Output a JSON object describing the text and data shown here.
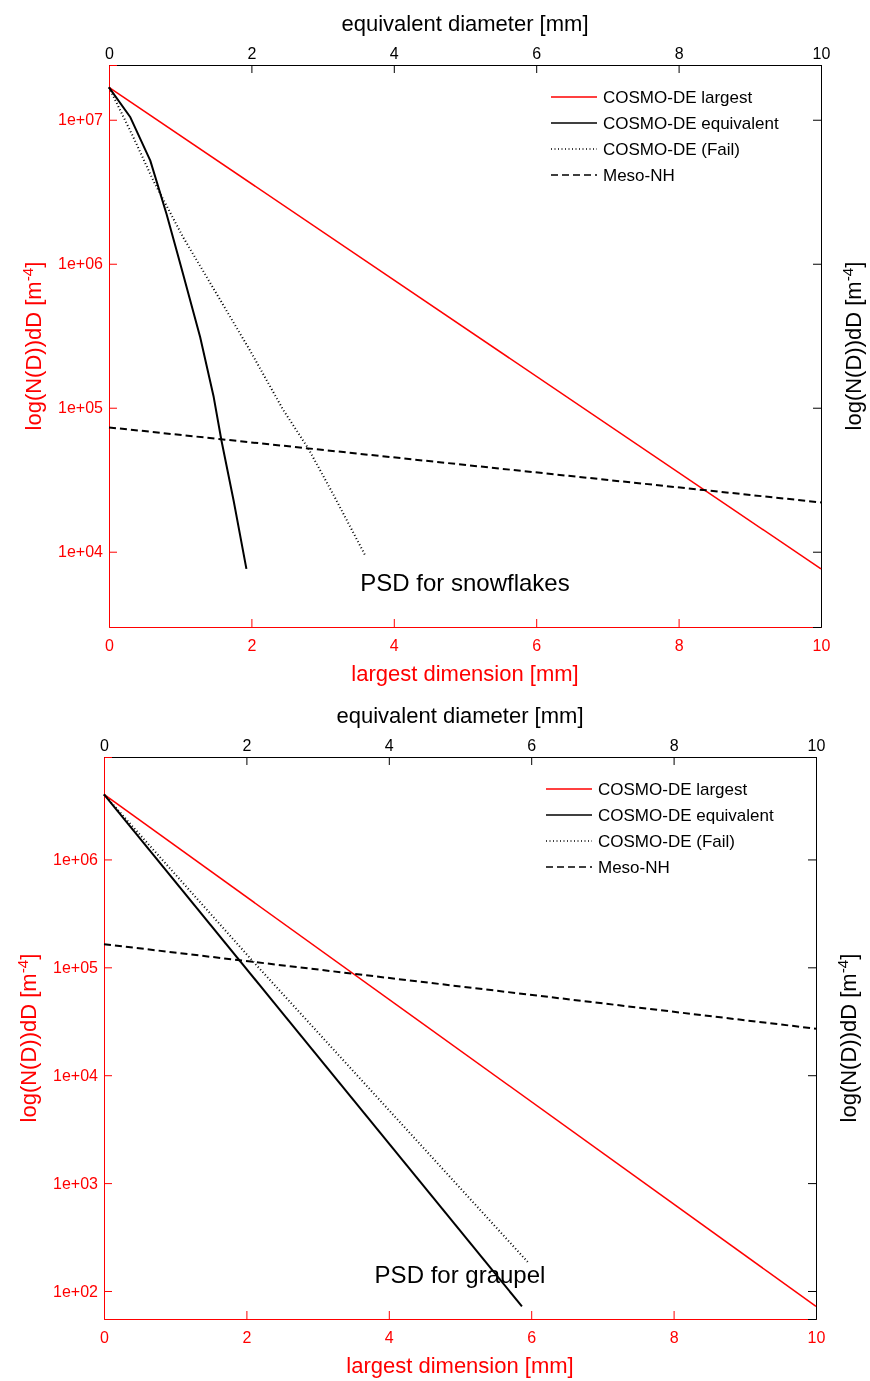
{
  "chart_data": [
    {
      "type": "line",
      "xlabel": "largest dimension [mm]",
      "x2label": "equivalent diameter [mm]",
      "ylabel": "log(N(D))dD [m$^{-4}$]",
      "y2label": "log(N(D))dD [m$^{-4}$]",
      "xlim": [
        0,
        10
      ],
      "xticks": [
        0,
        2,
        4,
        6,
        8,
        10
      ],
      "x2lim": [
        0,
        10
      ],
      "x2ticks": [
        0,
        2,
        4,
        6,
        8,
        10
      ],
      "ylim": [
        3000,
        24000000
      ],
      "yticks": [
        {
          "value": 10000,
          "label": "1e+04"
        },
        {
          "value": 100000,
          "label": "1e+05"
        },
        {
          "value": 1000000,
          "label": "1e+06"
        },
        {
          "value": 10000000,
          "label": "1e+07"
        }
      ],
      "log": "y",
      "legend": "top right",
      "grid": false,
      "marker": "none",
      "annotations": [
        "PSD for snowflakes"
      ],
      "series": [
        {
          "name": "COSMO-DE largest",
          "color": "#ff0000",
          "line_style": "solid",
          "x": [
            0,
            10
          ],
          "values": [
            16800000,
            7600
          ]
        },
        {
          "name": "COSMO-DE equivalent",
          "color": "#000000",
          "line_style": "solid",
          "x": [
            0,
            0.3,
            0.58,
            0.81,
            1.04,
            1.28,
            1.47,
            1.58,
            1.75,
            1.93
          ],
          "values": [
            16800000,
            10400000,
            5200000,
            2200000,
            850000,
            310000,
            119000,
            59000,
            22700,
            7600
          ]
        },
        {
          "name": "COSMO-DE (Fail)",
          "color": "#000000",
          "line_style": "dotted",
          "x": [
            0,
            0.34,
            0.62,
            1.04,
            1.51,
            1.98,
            2.45,
            2.8,
            3.15,
            3.6
          ],
          "values": [
            16800000,
            7600000,
            3800000,
            1530000,
            620000,
            250000,
            96000,
            52000,
            25000,
            9400
          ]
        },
        {
          "name": "Meso-NH",
          "color": "#000000",
          "line_style": "dashed",
          "x": [
            0,
            10
          ],
          "values": [
            73000,
            22000
          ]
        }
      ]
    },
    {
      "type": "line",
      "xlabel": "largest dimension [mm]",
      "x2label": "equivalent diameter [mm]",
      "ylabel": "log(N(D))dD [m$^{-4}$]",
      "y2label": "log(N(D))dD [m$^{-4}$]",
      "xlim": [
        0,
        10
      ],
      "xticks": [
        0,
        2,
        4,
        6,
        8,
        10
      ],
      "x2lim": [
        0,
        10
      ],
      "x2ticks": [
        0,
        2,
        4,
        6,
        8,
        10
      ],
      "ylim": [
        55,
        8900000
      ],
      "yticks": [
        {
          "value": 100,
          "label": "1e+02"
        },
        {
          "value": 1000,
          "label": "1e+03"
        },
        {
          "value": 10000,
          "label": "1e+04"
        },
        {
          "value": 100000,
          "label": "1e+05"
        },
        {
          "value": 1000000,
          "label": "1e+06"
        }
      ],
      "log": "y",
      "legend": "top right",
      "grid": false,
      "marker": "none",
      "annotations": [
        "PSD for graupel"
      ],
      "series": [
        {
          "name": "COSMO-DE largest",
          "color": "#ff0000",
          "line_style": "solid",
          "x": [
            0,
            10
          ],
          "values": [
            4000000,
            72
          ]
        },
        {
          "name": "COSMO-DE equivalent",
          "color": "#000000",
          "line_style": "solid",
          "x": [
            0,
            5.87
          ],
          "values": [
            4000000,
            72
          ]
        },
        {
          "name": "COSMO-DE (Fail)",
          "color": "#000000",
          "line_style": "dotted",
          "x": [
            0,
            2.1,
            5.95
          ],
          "values": [
            4000000,
            112000,
            186
          ]
        },
        {
          "name": "Meso-NH",
          "color": "#000000",
          "line_style": "dashed",
          "x": [
            0,
            10
          ],
          "values": [
            164000,
            27000
          ]
        }
      ]
    }
  ]
}
